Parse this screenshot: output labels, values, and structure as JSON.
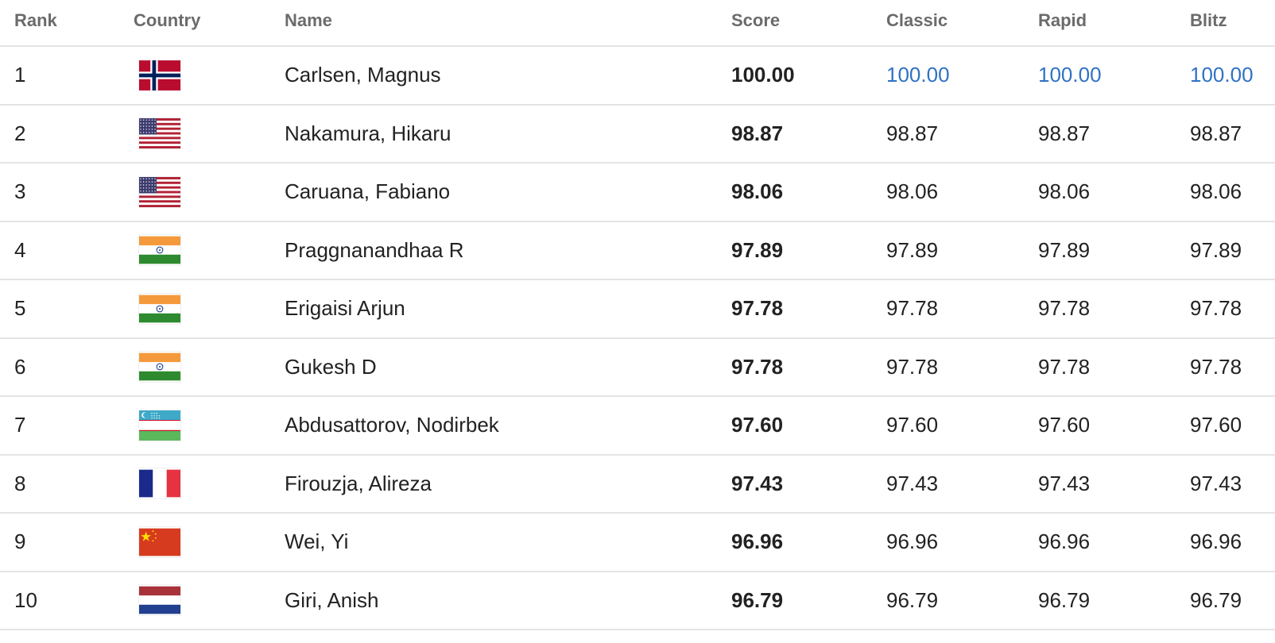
{
  "columns": {
    "rank": "Rank",
    "country": "Country",
    "name": "Name",
    "score": "Score",
    "classic": "Classic",
    "rapid": "Rapid",
    "blitz": "Blitz"
  },
  "colors": {
    "link": "#2f72c4",
    "header_text": "#6b6b6b",
    "divider": "#e4e4e4"
  },
  "rows": [
    {
      "rank": "1",
      "flag": "norway-flag-icon",
      "name": "Carlsen, Magnus",
      "score": "100.00",
      "classic": "100.00",
      "rapid": "100.00",
      "blitz": "100.00"
    },
    {
      "rank": "2",
      "flag": "usa-flag-icon",
      "name": "Nakamura, Hikaru",
      "score": "98.87",
      "classic": "98.87",
      "rapid": "98.87",
      "blitz": "98.87"
    },
    {
      "rank": "3",
      "flag": "usa-flag-icon",
      "name": "Caruana, Fabiano",
      "score": "98.06",
      "classic": "98.06",
      "rapid": "98.06",
      "blitz": "98.06"
    },
    {
      "rank": "4",
      "flag": "india-flag-icon",
      "name": "Praggnanandhaa R",
      "score": "97.89",
      "classic": "97.89",
      "rapid": "97.89",
      "blitz": "97.89"
    },
    {
      "rank": "5",
      "flag": "india-flag-icon",
      "name": "Erigaisi Arjun",
      "score": "97.78",
      "classic": "97.78",
      "rapid": "97.78",
      "blitz": "97.78"
    },
    {
      "rank": "6",
      "flag": "india-flag-icon",
      "name": "Gukesh D",
      "score": "97.78",
      "classic": "97.78",
      "rapid": "97.78",
      "blitz": "97.78"
    },
    {
      "rank": "7",
      "flag": "uzbekistan-flag-icon",
      "name": "Abdusattorov, Nodirbek",
      "score": "97.60",
      "classic": "97.60",
      "rapid": "97.60",
      "blitz": "97.60"
    },
    {
      "rank": "8",
      "flag": "france-flag-icon",
      "name": "Firouzja, Alireza",
      "score": "97.43",
      "classic": "97.43",
      "rapid": "97.43",
      "blitz": "97.43"
    },
    {
      "rank": "9",
      "flag": "china-flag-icon",
      "name": "Wei, Yi",
      "score": "96.96",
      "classic": "96.96",
      "rapid": "96.96",
      "blitz": "96.96"
    },
    {
      "rank": "10",
      "flag": "netherlands-flag-icon",
      "name": "Giri, Anish",
      "score": "96.79",
      "classic": "96.79",
      "rapid": "96.79",
      "blitz": "96.79"
    }
  ]
}
